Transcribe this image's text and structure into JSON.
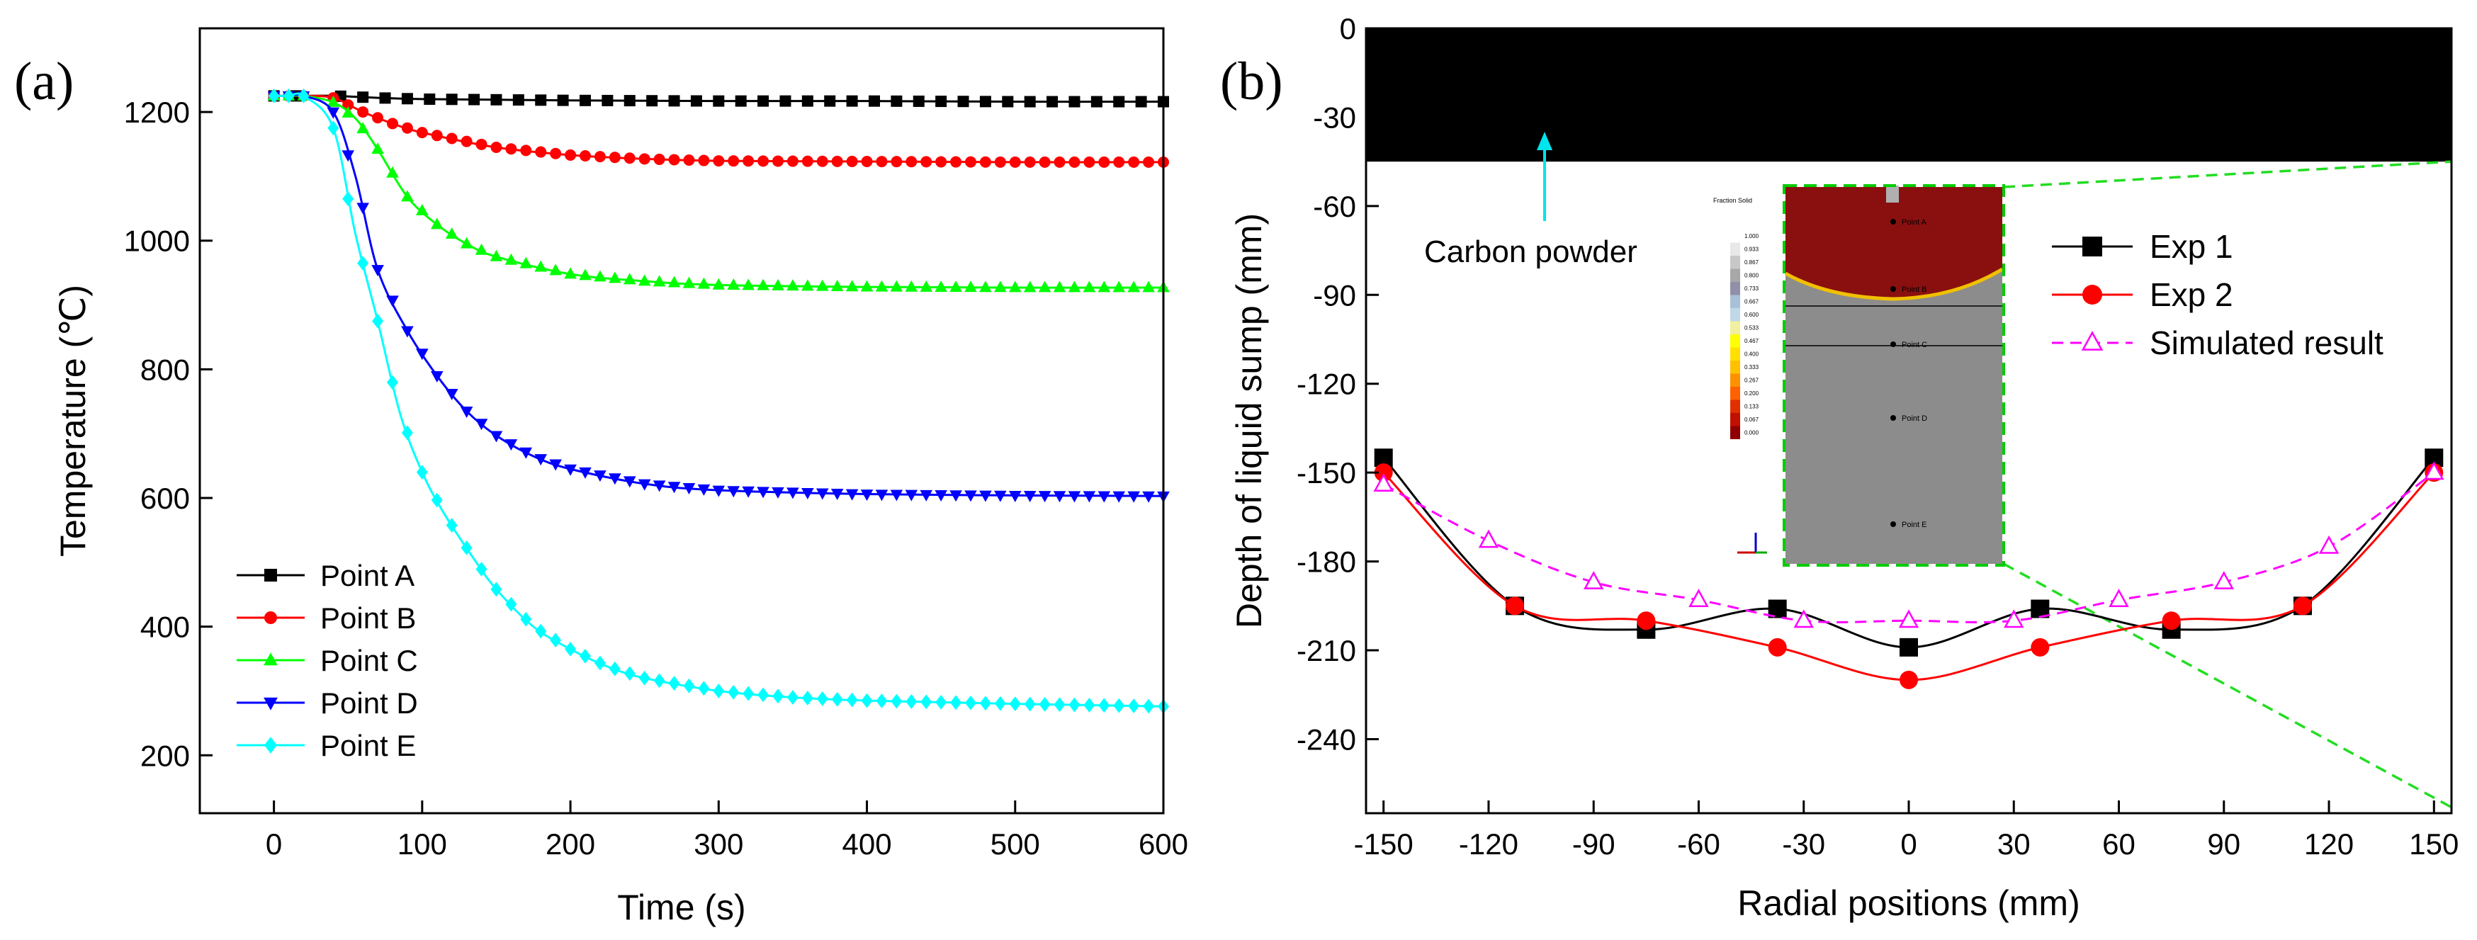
{
  "chart_data": [
    {
      "panel_label": "(a)",
      "type": "line",
      "xlabel": "Time (s)",
      "ylabel": "Temperature (℃)",
      "xlim": [
        -50,
        600
      ],
      "ylim": [
        110,
        1330
      ],
      "x_ticks": [
        0,
        100,
        200,
        300,
        400,
        500,
        600
      ],
      "y_ticks": [
        200,
        400,
        600,
        800,
        1000,
        1200
      ],
      "legend": "bottom-left",
      "series": [
        {
          "name": "Point A",
          "color": "#000000",
          "marker": "square",
          "points": [
            [
              0,
              1225
            ],
            [
              10,
              1225
            ],
            [
              20,
              1225
            ],
            [
              40,
              1225
            ],
            [
              70,
              1222
            ],
            [
              100,
              1220
            ],
            [
              150,
              1219
            ],
            [
              200,
              1218
            ],
            [
              300,
              1217
            ],
            [
              400,
              1217
            ],
            [
              500,
              1216
            ],
            [
              600,
              1216
            ]
          ]
        },
        {
          "name": "Point B",
          "color": "#ff0000",
          "marker": "circle",
          "points": [
            [
              0,
              1225
            ],
            [
              10,
              1225
            ],
            [
              20,
              1225
            ],
            [
              40,
              1222
            ],
            [
              60,
              1200
            ],
            [
              80,
              1182
            ],
            [
              100,
              1168
            ],
            [
              150,
              1145
            ],
            [
              200,
              1133
            ],
            [
              250,
              1127
            ],
            [
              300,
              1124
            ],
            [
              400,
              1123
            ],
            [
              500,
              1122
            ],
            [
              600,
              1122
            ]
          ]
        },
        {
          "name": "Point C",
          "color": "#00ff00",
          "marker": "triangle-up",
          "points": [
            [
              0,
              1225
            ],
            [
              10,
              1225
            ],
            [
              20,
              1225
            ],
            [
              40,
              1215
            ],
            [
              55,
              1190
            ],
            [
              70,
              1142
            ],
            [
              90,
              1068
            ],
            [
              110,
              1025
            ],
            [
              130,
              995
            ],
            [
              150,
              975
            ],
            [
              200,
              948
            ],
            [
              250,
              937
            ],
            [
              300,
              931
            ],
            [
              400,
              928
            ],
            [
              500,
              927
            ],
            [
              600,
              927
            ]
          ]
        },
        {
          "name": "Point D",
          "color": "#0000ff",
          "marker": "triangle-down",
          "points": [
            [
              0,
              1225
            ],
            [
              10,
              1225
            ],
            [
              20,
              1225
            ],
            [
              40,
              1200
            ],
            [
              55,
              1100
            ],
            [
              70,
              955
            ],
            [
              90,
              860
            ],
            [
              110,
              790
            ],
            [
              130,
              735
            ],
            [
              150,
              697
            ],
            [
              175,
              665
            ],
            [
              200,
              645
            ],
            [
              250,
              622
            ],
            [
              300,
              612
            ],
            [
              400,
              606
            ],
            [
              500,
              604
            ],
            [
              600,
              603
            ]
          ]
        },
        {
          "name": "Point E",
          "color": "#00ffff",
          "marker": "diamond",
          "points": [
            [
              0,
              1225
            ],
            [
              10,
              1225
            ],
            [
              20,
              1225
            ],
            [
              40,
              1175
            ],
            [
              55,
              1010
            ],
            [
              70,
              875
            ],
            [
              85,
              732
            ],
            [
              100,
              640
            ],
            [
              115,
              575
            ],
            [
              135,
              505
            ],
            [
              150,
              458
            ],
            [
              175,
              400
            ],
            [
              200,
              365
            ],
            [
              225,
              338
            ],
            [
              250,
              320
            ],
            [
              300,
              300
            ],
            [
              350,
              290
            ],
            [
              400,
              285
            ],
            [
              500,
              280
            ],
            [
              600,
              276
            ]
          ]
        }
      ]
    },
    {
      "panel_label": "(b)",
      "type": "line",
      "xlabel": "Radial positions (mm)",
      "ylabel": "Depth of liquid sump (mm)",
      "xlim": [
        -155,
        155
      ],
      "ylim": [
        -265,
        0
      ],
      "x_ticks": [
        -150,
        -120,
        -90,
        -60,
        -30,
        0,
        30,
        60,
        90,
        120,
        150
      ],
      "y_ticks": [
        0,
        -30,
        -60,
        -90,
        -120,
        -150,
        -180,
        -210,
        -240
      ],
      "legend": "top-right",
      "annotations": [
        "Carbon powder"
      ],
      "carbon_powder_band": [
        0,
        -45
      ],
      "series": [
        {
          "name": "Exp 1",
          "color": "#000000",
          "marker": "square-filled",
          "x": [
            -150,
            -112.5,
            -75,
            -37.5,
            0,
            37.5,
            75,
            112.5,
            150
          ],
          "y": [
            -145,
            -195,
            -203,
            -196,
            -209,
            -196,
            -203,
            -195,
            -145
          ]
        },
        {
          "name": "Exp 2",
          "color": "#ff0000",
          "marker": "circle-filled",
          "x": [
            -150,
            -112.5,
            -75,
            -37.5,
            0,
            37.5,
            75,
            112.5,
            150
          ],
          "y": [
            -150,
            -195,
            -200,
            -209,
            -220,
            -209,
            -200,
            -195,
            -150
          ]
        },
        {
          "name": "Simulated result",
          "color": "#ff00ff",
          "marker": "triangle-open",
          "dashed": true,
          "x": [
            -150,
            -120,
            -90,
            -60,
            -30,
            0,
            30,
            60,
            90,
            120,
            150
          ],
          "y": [
            -154,
            -173,
            -187,
            -193,
            -200,
            -200,
            -200,
            -193,
            -187,
            -175,
            -150
          ]
        }
      ],
      "inset": {
        "title": "Fraction Solid",
        "scale_values": [
          "1.000",
          "0.933",
          "0.867",
          "0.800",
          "0.733",
          "0.667",
          "0.600",
          "0.533",
          "0.467",
          "0.400",
          "0.333",
          "0.267",
          "0.200",
          "0.133",
          "0.067",
          "0.000"
        ],
        "scale_colors": [
          "#ffffff",
          "#e8e8e8",
          "#c8c8c8",
          "#a8a8a8",
          "#9090a8",
          "#a8c0d8",
          "#c0d8e8",
          "#f0f0a0",
          "#ffff00",
          "#ffe000",
          "#ffc000",
          "#ff9000",
          "#ff6000",
          "#e03000",
          "#c01000",
          "#900000"
        ],
        "points": [
          "Point A",
          "Point B",
          "Point C",
          "Point D",
          "Point E"
        ]
      }
    }
  ]
}
